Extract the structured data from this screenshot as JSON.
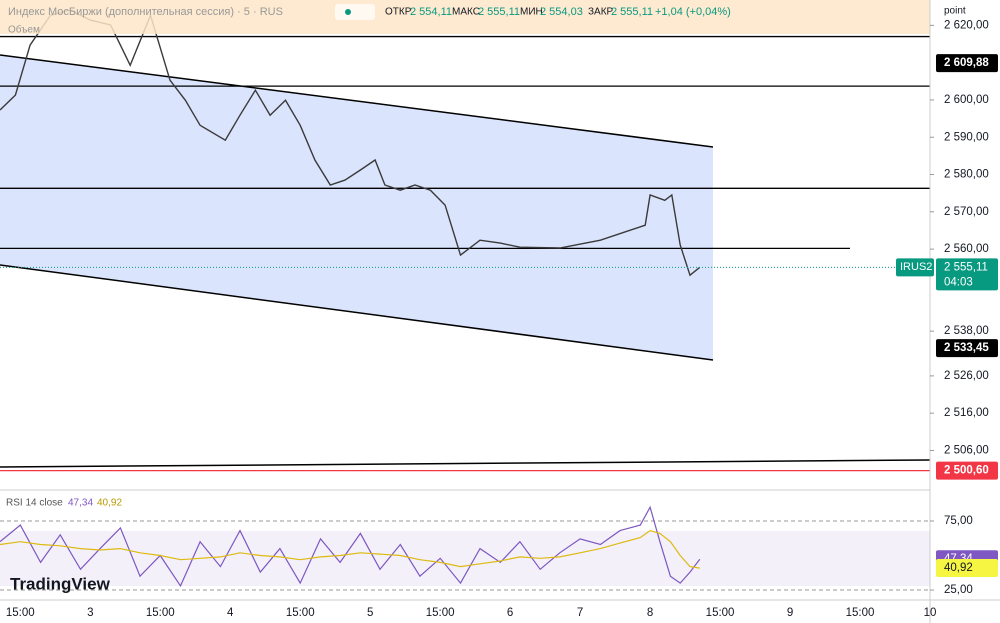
{
  "header": {
    "title": "Индекс МосБиржи (дополнительная сессия) · 5 · RUS",
    "open_label": "ОТКР",
    "open": "2 554,11",
    "high_label": "МАКС",
    "high": "2 555,11",
    "low_label": "МИН",
    "low": "2 554,03",
    "close_label": "ЗАКР",
    "close": "2 555,11",
    "change": "+1,04 (+0,04%)",
    "volume": "Объем",
    "axis_unit": "point",
    "logo": "TradingView"
  },
  "chart_data": [
    {
      "type": "line",
      "xlim": [
        -0.29,
        13
      ],
      "ylim": [
        2495.4,
        2626.8
      ],
      "xticks": [
        {
          "value": 0,
          "label": "15:00"
        },
        {
          "value": 1,
          "label": "3"
        },
        {
          "value": 2,
          "label": "15:00"
        },
        {
          "value": 3,
          "label": "4"
        },
        {
          "value": 4,
          "label": "15:00"
        },
        {
          "value": 5,
          "label": "5"
        },
        {
          "value": 6,
          "label": "15:00"
        },
        {
          "value": 7,
          "label": "6"
        },
        {
          "value": 8,
          "label": "7"
        },
        {
          "value": 9,
          "label": "8"
        },
        {
          "value": 10,
          "label": "15:00"
        },
        {
          "value": 11,
          "label": "9"
        },
        {
          "value": 12,
          "label": "15:00"
        },
        {
          "value": 13,
          "label": "10"
        }
      ],
      "yticks": [
        {
          "value": 2620,
          "label": "2 620,00"
        },
        {
          "value": 2600,
          "label": "2 600,00"
        },
        {
          "value": 2590,
          "label": "2 590,00"
        },
        {
          "value": 2580,
          "label": "2 580,00"
        },
        {
          "value": 2570,
          "label": "2 570,00"
        },
        {
          "value": 2560,
          "label": "2 560,00"
        },
        {
          "value": 2538,
          "label": "2 538,00"
        },
        {
          "value": 2526,
          "label": "2 526,00"
        },
        {
          "value": 2516,
          "label": "2 516,00"
        },
        {
          "value": 2506,
          "label": "2 506,00"
        }
      ],
      "series": [
        {
          "color": "#3a3a3a",
          "x": [
            -0.29,
            -0.07,
            0.14,
            0.43,
            0.71,
            1,
            1.29,
            1.57,
            1.86,
            2.14,
            2.36,
            2.57,
            2.93,
            3.14,
            3.36,
            3.57,
            3.79,
            4,
            4.21,
            4.43,
            4.64,
            4.86,
            5.07,
            5.21,
            5.43,
            5.64,
            5.86,
            6.07,
            6.29,
            6.57,
            6.86,
            7.14,
            7.71,
            8.29,
            8.93,
            9,
            9.21,
            9.31,
            9.43,
            9.57,
            9.71
          ],
          "values": [
            2597.3,
            2601.3,
            2614.7,
            2622.7,
            2624.1,
            2621.4,
            2620.1,
            2609.3,
            2622.7,
            2605.3,
            2599.9,
            2593.2,
            2589.2,
            2595.9,
            2602.6,
            2595.9,
            2599.9,
            2593.2,
            2583.9,
            2577.2,
            2578.5,
            2581.2,
            2583.9,
            2577.2,
            2575.8,
            2577.2,
            2575.8,
            2571.8,
            2558.4,
            2562.4,
            2561.6,
            2560.5,
            2560.3,
            2562.4,
            2566.4,
            2574.5,
            2573.1,
            2574.5,
            2561.1,
            2553.0,
            2555.11
          ]
        }
      ],
      "levels": [
        2617,
        2603.7,
        2576.3,
        2560.2
      ],
      "price_labels": [
        {
          "value": 2609.88,
          "label": "2 609,88"
        },
        {
          "value": 2533.45,
          "label": "2 533,45"
        },
        {
          "value": 2500.6,
          "label": "2 500,60"
        }
      ],
      "last_price": {
        "value": 2555.11,
        "label": "2 555,11",
        "symbol": "IRUS2",
        "timer": "04:03"
      }
    },
    {
      "type": "line",
      "title": "RSI 14 close",
      "legend_values": [
        "47,34",
        "40,92"
      ],
      "xlim": [
        -0.29,
        13
      ],
      "ylim": [
        17.8,
        93.8
      ],
      "yticks": [
        {
          "value": 75,
          "label": "75,00"
        },
        {
          "value": 25,
          "label": "25,00"
        }
      ],
      "series": [
        {
          "color": "#7e57c2",
          "x": [
            -0.29,
            0,
            0.29,
            0.57,
            0.86,
            1.14,
            1.43,
            1.71,
            2,
            2.29,
            2.57,
            2.86,
            3.14,
            3.43,
            3.71,
            4,
            4.29,
            4.57,
            4.86,
            5.14,
            5.43,
            5.71,
            6,
            6.29,
            6.57,
            6.86,
            7.14,
            7.43,
            7.71,
            8,
            8.29,
            8.57,
            8.86,
            9,
            9.14,
            9.29,
            9.43,
            9.57,
            9.71
          ],
          "values": [
            60,
            72,
            45,
            65,
            40,
            55,
            70,
            35,
            50,
            28,
            60,
            42,
            68,
            38,
            55,
            30,
            62,
            45,
            66,
            40,
            58,
            35,
            48,
            30,
            55,
            45,
            60,
            40,
            52,
            62,
            58,
            68,
            72,
            85,
            60,
            35,
            30,
            38,
            47.34
          ]
        },
        {
          "color": "#e8c400",
          "x": [
            -0.29,
            0,
            0.29,
            0.57,
            0.86,
            1.14,
            1.43,
            1.71,
            2,
            2.29,
            2.57,
            2.86,
            3.14,
            3.43,
            3.71,
            4,
            4.29,
            4.57,
            4.86,
            5.14,
            5.43,
            5.71,
            6,
            6.29,
            6.57,
            6.86,
            7.14,
            7.43,
            7.71,
            8,
            8.29,
            8.57,
            8.86,
            9,
            9.14,
            9.29,
            9.43,
            9.57,
            9.71
          ],
          "values": [
            58,
            60,
            58,
            57,
            55,
            54,
            55,
            52,
            50,
            47,
            48,
            49,
            52,
            50,
            49,
            47,
            49,
            50,
            52,
            51,
            50,
            47,
            45,
            42,
            44,
            46,
            49,
            48,
            49,
            52,
            55,
            59,
            63,
            68,
            66,
            60,
            50,
            42,
            40.92
          ]
        }
      ]
    }
  ]
}
